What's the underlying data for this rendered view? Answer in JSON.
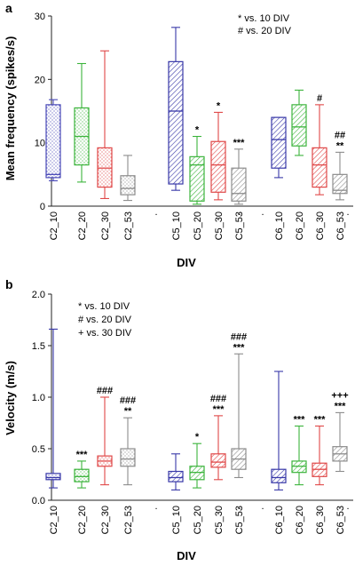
{
  "chart_data": [
    {
      "type": "box",
      "panel": "a",
      "xlabel": "DIV",
      "ylabel": "Mean frequency (spikes/s)",
      "ylim": [
        0,
        30
      ],
      "yticks": [
        0,
        10,
        20,
        30
      ],
      "legend": [
        "* vs. 10 DIV",
        "# vs. 20 DIV"
      ],
      "legend_position": "top-right",
      "separators": [
        ".",
        ".",
        ".",
        "."
      ],
      "categories": [
        "C2_10",
        "C2_20",
        "C2_30",
        "C2_53",
        "C5_10",
        "C5_20",
        "C5_30",
        "C5_53",
        "C6_10",
        "C6_20",
        "C6_30",
        "C6_53"
      ],
      "boxes": [
        {
          "name": "C2_10",
          "min": 4,
          "q1": 4.5,
          "median": 5,
          "q3": 16,
          "max": 16.8,
          "color": "#4a4ab8",
          "pattern": "dots",
          "annotation": []
        },
        {
          "name": "C2_20",
          "min": 3.8,
          "q1": 6.5,
          "median": 11,
          "q3": 15.5,
          "max": 22.5,
          "color": "#3cb43c",
          "pattern": "dots",
          "annotation": []
        },
        {
          "name": "C2_30",
          "min": 1.2,
          "q1": 3,
          "median": 6,
          "q3": 9.2,
          "max": 24.5,
          "color": "#e04848",
          "pattern": "dots",
          "annotation": []
        },
        {
          "name": "C2_53",
          "min": 0.9,
          "q1": 1.8,
          "median": 2.8,
          "q3": 4.8,
          "max": 8,
          "color": "#8c8c8c",
          "pattern": "dots",
          "annotation": []
        },
        {
          "name": "C5_10",
          "min": 2.5,
          "q1": 3.5,
          "median": 15,
          "q3": 22.8,
          "max": 28.2,
          "color": "#3838a8",
          "pattern": "hatch",
          "annotation": []
        },
        {
          "name": "C5_20",
          "min": 0.3,
          "q1": 0.8,
          "median": 6.5,
          "q3": 7.8,
          "max": 11,
          "color": "#3cb43c",
          "pattern": "hatch",
          "annotation": [
            "*"
          ]
        },
        {
          "name": "C5_30",
          "min": 1,
          "q1": 2.2,
          "median": 6.5,
          "q3": 10.2,
          "max": 14.8,
          "color": "#e04848",
          "pattern": "hatch",
          "annotation": [
            "*"
          ]
        },
        {
          "name": "C5_53",
          "min": 0.3,
          "q1": 0.8,
          "median": 2,
          "q3": 6,
          "max": 9,
          "color": "#8c8c8c",
          "pattern": "hatch",
          "annotation": [
            "***"
          ]
        },
        {
          "name": "C6_10",
          "min": 4.5,
          "q1": 6,
          "median": 10.5,
          "q3": 14,
          "max": 14,
          "color": "#3838a8",
          "pattern": "hatch",
          "annotation": []
        },
        {
          "name": "C6_20",
          "min": 8,
          "q1": 9.5,
          "median": 12.5,
          "q3": 16,
          "max": 18.3,
          "color": "#3cb43c",
          "pattern": "hatch",
          "annotation": []
        },
        {
          "name": "C6_30",
          "min": 1.8,
          "q1": 3,
          "median": 6.5,
          "q3": 9.2,
          "max": 16,
          "color": "#e04848",
          "pattern": "hatch",
          "annotation": [
            "#"
          ]
        },
        {
          "name": "C6_53",
          "min": 1,
          "q1": 2,
          "median": 2.5,
          "q3": 5,
          "max": 8.5,
          "color": "#8c8c8c",
          "pattern": "hatch",
          "annotation": [
            "##",
            "**"
          ]
        }
      ]
    },
    {
      "type": "box",
      "panel": "b",
      "xlabel": "DIV",
      "ylabel": "Velocity (m/s)",
      "ylim": [
        0,
        2.0
      ],
      "yticks": [
        0.0,
        0.5,
        1.0,
        1.5,
        2.0
      ],
      "legend": [
        "* vs. 10 DIV",
        "# vs. 20 DIV",
        "+ vs. 30 DIV"
      ],
      "legend_position": "top-left",
      "separators": [
        ".",
        ".",
        ".",
        "."
      ],
      "categories": [
        "C2_10",
        "C2_20",
        "C2_30",
        "C2_53",
        "C5_10",
        "C5_20",
        "C5_30",
        "C5_53",
        "C6_10",
        "C6_20",
        "C6_30",
        "C6_53"
      ],
      "boxes": [
        {
          "name": "C2_10",
          "min": 0.12,
          "q1": 0.2,
          "median": 0.22,
          "q3": 0.26,
          "max": 1.66,
          "color": "#3838a8",
          "pattern": "dots",
          "annotation": []
        },
        {
          "name": "C2_20",
          "min": 0.12,
          "q1": 0.18,
          "median": 0.23,
          "q3": 0.3,
          "max": 0.38,
          "color": "#3cb43c",
          "pattern": "dots",
          "annotation": [
            "***"
          ]
        },
        {
          "name": "C2_30",
          "min": 0.15,
          "q1": 0.33,
          "median": 0.38,
          "q3": 0.43,
          "max": 1.0,
          "color": "#e04848",
          "pattern": "dots",
          "annotation": [
            "###"
          ]
        },
        {
          "name": "C2_53",
          "min": 0.15,
          "q1": 0.33,
          "median": 0.4,
          "q3": 0.5,
          "max": 0.8,
          "color": "#8c8c8c",
          "pattern": "dots",
          "annotation": [
            "###",
            "**"
          ]
        },
        {
          "name": "C5_10",
          "min": 0.1,
          "q1": 0.18,
          "median": 0.22,
          "q3": 0.28,
          "max": 0.45,
          "color": "#3838a8",
          "pattern": "hatch",
          "annotation": []
        },
        {
          "name": "C5_20",
          "min": 0.12,
          "q1": 0.2,
          "median": 0.27,
          "q3": 0.33,
          "max": 0.55,
          "color": "#3cb43c",
          "pattern": "hatch",
          "annotation": [
            "*"
          ]
        },
        {
          "name": "C5_30",
          "min": 0.2,
          "q1": 0.32,
          "median": 0.37,
          "q3": 0.45,
          "max": 0.82,
          "color": "#e04848",
          "pattern": "hatch",
          "annotation": [
            "###",
            "***"
          ]
        },
        {
          "name": "C5_53",
          "min": 0.22,
          "q1": 0.3,
          "median": 0.4,
          "q3": 0.5,
          "max": 1.42,
          "color": "#8c8c8c",
          "pattern": "hatch",
          "annotation": [
            "###",
            "***"
          ]
        },
        {
          "name": "C6_10",
          "min": 0.1,
          "q1": 0.17,
          "median": 0.22,
          "q3": 0.3,
          "max": 1.25,
          "color": "#3838a8",
          "pattern": "hatch",
          "annotation": []
        },
        {
          "name": "C6_20",
          "min": 0.15,
          "q1": 0.27,
          "median": 0.33,
          "q3": 0.38,
          "max": 0.72,
          "color": "#3cb43c",
          "pattern": "hatch",
          "annotation": [
            "***"
          ]
        },
        {
          "name": "C6_30",
          "min": 0.15,
          "q1": 0.23,
          "median": 0.3,
          "q3": 0.36,
          "max": 0.72,
          "color": "#e04848",
          "pattern": "hatch",
          "annotation": [
            "***"
          ]
        },
        {
          "name": "C6_53",
          "min": 0.28,
          "q1": 0.38,
          "median": 0.45,
          "q3": 0.52,
          "max": 0.85,
          "color": "#8c8c8c",
          "pattern": "hatch",
          "annotation": [
            "+++",
            "***"
          ]
        }
      ]
    }
  ]
}
